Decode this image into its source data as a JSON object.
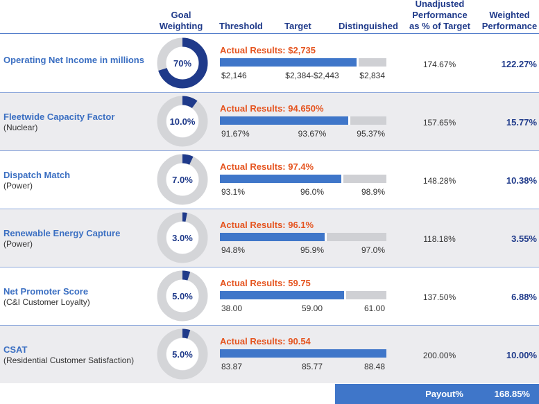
{
  "headers": {
    "goal_weighting": [
      "Goal",
      "Weighting"
    ],
    "threshold": "Threshold",
    "target": "Target",
    "distinguished": "Distinguished",
    "unadjusted": [
      "Unadjusted",
      "Performance",
      "as % of Target"
    ],
    "weighted": [
      "Weighted",
      "Performance"
    ]
  },
  "colors": {
    "accent_blue": "#3f76c9",
    "dark_blue": "#1f3a8a",
    "actual_orange": "#e5541f",
    "bar_gray": "#cfd0d4",
    "donut_track": "#d4d5d8",
    "row_shade": "#ececef"
  },
  "chart_data": {
    "type": "table",
    "title": "",
    "rows": [
      {
        "name": "Operating Net Income in millions",
        "sub": "",
        "weighting": 0.7,
        "weighting_label": "70%",
        "actual_label": "Actual Results: $2,735",
        "fill": 0.82,
        "threshold": "$2,146",
        "target": "$2,384-$2,443",
        "distinguished": "$2,834",
        "unadjusted": "174.67%",
        "weighted": "122.27%"
      },
      {
        "name": "Fleetwide Capacity Factor",
        "sub": "(Nuclear)",
        "weighting": 0.1,
        "weighting_label": "10.0%",
        "actual_label": "Actual Results: 94.650%",
        "fill": 0.77,
        "threshold": "91.67%",
        "target": "93.67%",
        "distinguished": "95.37%",
        "unadjusted": "157.65%",
        "weighted": "15.77%"
      },
      {
        "name": "Dispatch Match",
        "sub": "(Power)",
        "weighting": 0.07,
        "weighting_label": "7.0%",
        "actual_label": "Actual Results: 97.4%",
        "fill": 0.73,
        "threshold": "93.1%",
        "target": "96.0%",
        "distinguished": "98.9%",
        "unadjusted": "148.28%",
        "weighted": "10.38%"
      },
      {
        "name": "Renewable Energy Capture",
        "sub": "(Power)",
        "weighting": 0.03,
        "weighting_label": "3.0%",
        "actual_label": "Actual Results: 96.1%",
        "fill": 0.63,
        "threshold": "94.8%",
        "target": "95.9%",
        "distinguished": "97.0%",
        "unadjusted": "118.18%",
        "weighted": "3.55%"
      },
      {
        "name": "Net Promoter Score",
        "sub": "(C&I Customer Loyalty)",
        "weighting": 0.05,
        "weighting_label": "5.0%",
        "actual_label": "Actual Results: 59.75",
        "fill": 0.745,
        "threshold": "38.00",
        "target": "59.00",
        "distinguished": "61.00",
        "unadjusted": "137.50%",
        "weighted": "6.88%"
      },
      {
        "name": "CSAT",
        "sub": "(Residential Customer Satisfaction)",
        "weighting": 0.05,
        "weighting_label": "5.0%",
        "actual_label": "Actual Results: 90.54",
        "fill": 1.0,
        "threshold": "83.87",
        "target": "85.77",
        "distinguished": "88.48",
        "unadjusted": "200.00%",
        "weighted": "10.00%"
      }
    ],
    "payout_label": "Payout%",
    "payout_value": "168.85%"
  }
}
